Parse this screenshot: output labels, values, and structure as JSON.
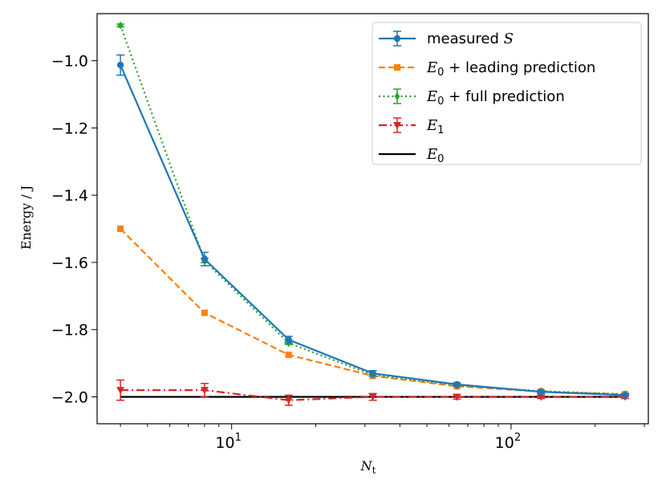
{
  "chart_data": {
    "type": "line",
    "xscale": "log",
    "xlabel": "N",
    "xlabel_sub": "t",
    "ylabel": "Energy / J",
    "xlim": [
      3.3,
      310
    ],
    "ylim": [
      -2.08,
      -0.86
    ],
    "x_ticks": [
      {
        "value": 10,
        "base": "10",
        "exp": "1"
      },
      {
        "value": 100,
        "base": "10",
        "exp": "2"
      }
    ],
    "y_ticks": [
      {
        "value": -2.0,
        "label": "−2.0"
      },
      {
        "value": -1.8,
        "label": "−1.8"
      },
      {
        "value": -1.6,
        "label": "−1.6"
      },
      {
        "value": -1.4,
        "label": "−1.4"
      },
      {
        "value": -1.2,
        "label": "−1.2"
      },
      {
        "value": -1.0,
        "label": "−1.0"
      }
    ],
    "x": [
      4,
      8,
      16,
      32,
      64,
      128,
      256
    ],
    "series": [
      {
        "name": "E0",
        "legend": "E0",
        "color": "#000000",
        "style": "solid",
        "marker": "none",
        "x": [
          4,
          256
        ],
        "values": [
          -2.0,
          -2.0
        ],
        "errors": null
      },
      {
        "name": "E1",
        "legend": "E1",
        "color": "#d62728",
        "style": "dashdot",
        "marker": "triangle-down",
        "values": [
          -1.98,
          -1.98,
          -2.01,
          -2.0,
          -2.0,
          -2.0,
          -2.0
        ],
        "errors": [
          0.03,
          0.02,
          0.015,
          0.01,
          0.007,
          0.005,
          0.005
        ]
      },
      {
        "name": "E0 + leading prediction",
        "legend": "+ leading prediction",
        "color": "#ff7f0e",
        "style": "dashed",
        "marker": "square",
        "values": [
          -1.5,
          -1.75,
          -1.875,
          -1.9375,
          -1.96875,
          -1.984375,
          -1.9921875
        ],
        "errors": null
      },
      {
        "name": "E0 + full prediction",
        "legend": "+ full prediction",
        "color": "#2ca02c",
        "style": "dotted",
        "marker": "diamond",
        "values": [
          -0.895,
          -1.595,
          -1.84,
          -1.935,
          -1.966,
          -1.983,
          -1.992
        ],
        "errors": [
          0.004,
          0.006,
          0.004,
          0.003,
          0.003,
          0.002,
          0.002
        ]
      },
      {
        "name": "measured S",
        "legend": "measured",
        "color": "#1f77b4",
        "style": "solid",
        "marker": "circle",
        "values": [
          -1.013,
          -1.59,
          -1.83,
          -1.93,
          -1.963,
          -1.985,
          -1.995
        ],
        "errors": [
          0.03,
          0.02,
          0.01,
          0.008,
          0.005,
          0.004,
          0.003
        ]
      }
    ],
    "legend_order": [
      "measured S",
      "E0 + leading prediction",
      "E0 + full prediction",
      "E1",
      "E0"
    ],
    "legend_labels": {
      "measured_prefix": "measured",
      "measured_symbol": "S",
      "e0_symbol": "E",
      "e0_sub": "0",
      "e1_symbol": "E",
      "e1_sub": "1",
      "leading": "+ leading prediction",
      "full": "+ full prediction"
    },
    "legend_position": "top-right"
  }
}
